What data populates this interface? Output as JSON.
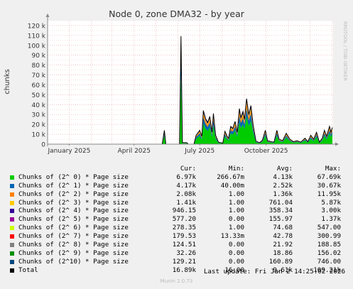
{
  "chart_data": {
    "type": "area",
    "title": "Node 0, zone DMA32 - by year",
    "ylabel": "chunks",
    "ylim": [
      0,
      125000
    ],
    "yticks": [
      {
        "value": 0,
        "label": "0"
      },
      {
        "value": 10000,
        "label": "10 k"
      },
      {
        "value": 20000,
        "label": "20 k"
      },
      {
        "value": 30000,
        "label": "30 k"
      },
      {
        "value": 40000,
        "label": "40 k"
      },
      {
        "value": 50000,
        "label": "50 k"
      },
      {
        "value": 60000,
        "label": "60 k"
      },
      {
        "value": 70000,
        "label": "70 k"
      },
      {
        "value": 80000,
        "label": "80 k"
      },
      {
        "value": 90000,
        "label": "90 k"
      },
      {
        "value": 100000,
        "label": "100 k"
      },
      {
        "value": 110000,
        "label": "110 k"
      },
      {
        "value": 120000,
        "label": "120 k"
      }
    ],
    "xlim": [
      "2024-12-02",
      "2026-01-02"
    ],
    "xticks": [
      {
        "date": "2025-01-01",
        "label": "January 2025"
      },
      {
        "date": "2025-04-01",
        "label": "April 2025"
      },
      {
        "date": "2025-07-01",
        "label": "July 2025"
      },
      {
        "date": "2025-10-01",
        "label": "October 2025"
      }
    ],
    "grid": true,
    "legend_placement": "bottom",
    "watermark": "RRDTOOL / TOBI OETIKER",
    "series": [
      {
        "name": "Chunks of (2^ 0) * Page size",
        "color": "#00cc00",
        "cur": "6.97k",
        "min": "266.67m",
        "avg": "4.13k",
        "max": "67.69k"
      },
      {
        "name": "Chunks of (2^ 1) * Page size",
        "color": "#0066b3",
        "cur": "4.17k",
        "min": "40.00m",
        "avg": "2.52k",
        "max": "30.67k"
      },
      {
        "name": "Chunks of (2^ 2) * Page size",
        "color": "#ff8000",
        "cur": "2.08k",
        "min": "1.00",
        "avg": "1.36k",
        "max": "11.95k"
      },
      {
        "name": "Chunks of (2^ 3) * Page size",
        "color": "#ffcc00",
        "cur": "1.41k",
        "min": "1.00",
        "avg": "761.04",
        "max": "5.87k"
      },
      {
        "name": "Chunks of (2^ 4) * Page size",
        "color": "#330099",
        "cur": "946.15",
        "min": "1.00",
        "avg": "358.34",
        "max": "3.00k"
      },
      {
        "name": "Chunks of (2^ 5) * Page size",
        "color": "#990099",
        "cur": "577.20",
        "min": "0.00",
        "avg": "155.97",
        "max": "1.37k"
      },
      {
        "name": "Chunks of (2^ 6) * Page size",
        "color": "#ccff00",
        "cur": "278.35",
        "min": "1.00",
        "avg": "74.68",
        "max": "547.00"
      },
      {
        "name": "Chunks of (2^ 7) * Page size",
        "color": "#ff0000",
        "cur": "179.53",
        "min": "13.33m",
        "avg": "42.78",
        "max": "300.99"
      },
      {
        "name": "Chunks of (2^ 8) * Page size",
        "color": "#808080",
        "cur": "124.51",
        "min": "0.00",
        "avg": "21.92",
        "max": "188.85"
      },
      {
        "name": "Chunks of (2^ 9) * Page size",
        "color": "#008f00",
        "cur": "32.26",
        "min": "0.00",
        "avg": "18.86",
        "max": "156.02"
      },
      {
        "name": "Chunks of (2^10) * Page size",
        "color": "#00487d",
        "cur": "129.21",
        "min": "0.00",
        "avg": "160.89",
        "max": "746.00"
      },
      {
        "name": "Total",
        "color": "#000000",
        "cur": "16.89k",
        "min": "16.00",
        "avg": "9.61k",
        "max": "109.21k"
      }
    ],
    "total_points": [
      [
        "2025-05-10",
        0
      ],
      [
        "2025-05-13",
        14000
      ],
      [
        "2025-05-15",
        0
      ],
      [
        "2025-06-03",
        0
      ],
      [
        "2025-06-05",
        109210
      ],
      [
        "2025-06-07",
        1500
      ],
      [
        "2025-06-13",
        1500
      ],
      [
        "2025-06-15",
        0
      ],
      [
        "2025-06-23",
        0
      ],
      [
        "2025-06-26",
        9000
      ],
      [
        "2025-07-01",
        14000
      ],
      [
        "2025-07-04",
        8000
      ],
      [
        "2025-07-06",
        34000
      ],
      [
        "2025-07-09",
        26000
      ],
      [
        "2025-07-12",
        22000
      ],
      [
        "2025-07-15",
        28000
      ],
      [
        "2025-07-18",
        12000
      ],
      [
        "2025-07-20",
        31000
      ],
      [
        "2025-07-23",
        9000
      ],
      [
        "2025-07-27",
        2000
      ],
      [
        "2025-08-02",
        1000
      ],
      [
        "2025-08-05",
        13000
      ],
      [
        "2025-08-08",
        8000
      ],
      [
        "2025-08-10",
        6000
      ],
      [
        "2025-08-13",
        18000
      ],
      [
        "2025-08-16",
        16000
      ],
      [
        "2025-08-19",
        23000
      ],
      [
        "2025-08-22",
        12000
      ],
      [
        "2025-08-25",
        36000
      ],
      [
        "2025-08-27",
        27000
      ],
      [
        "2025-08-30",
        33000
      ],
      [
        "2025-09-01",
        25000
      ],
      [
        "2025-09-04",
        46000
      ],
      [
        "2025-09-07",
        30000
      ],
      [
        "2025-09-10",
        39000
      ],
      [
        "2025-09-13",
        20000
      ],
      [
        "2025-09-17",
        3000
      ],
      [
        "2025-09-22",
        1500
      ],
      [
        "2025-09-26",
        4000
      ],
      [
        "2025-09-30",
        14000
      ],
      [
        "2025-10-03",
        3500
      ],
      [
        "2025-10-08",
        2500
      ],
      [
        "2025-10-12",
        2000
      ],
      [
        "2025-10-16",
        14000
      ],
      [
        "2025-10-19",
        5000
      ],
      [
        "2025-10-24",
        3500
      ],
      [
        "2025-10-29",
        11000
      ],
      [
        "2025-11-03",
        5000
      ],
      [
        "2025-11-08",
        2500
      ],
      [
        "2025-11-13",
        3500
      ],
      [
        "2025-11-18",
        2000
      ],
      [
        "2025-11-24",
        6000
      ],
      [
        "2025-11-28",
        2500
      ],
      [
        "2025-12-02",
        9000
      ],
      [
        "2025-12-06",
        5000
      ],
      [
        "2025-12-10",
        12000
      ],
      [
        "2025-12-14",
        2000
      ],
      [
        "2025-12-18",
        6000
      ],
      [
        "2025-12-21",
        14000
      ],
      [
        "2025-12-24",
        8000
      ],
      [
        "2025-12-28",
        18000
      ],
      [
        "2025-12-30",
        12000
      ],
      [
        "2026-01-01",
        16890
      ]
    ],
    "stack_fractions": [
      0.61,
      0.18,
      0.09,
      0.05,
      0.03,
      0.015,
      0.01,
      0.008,
      0.004,
      0.001,
      0.002
    ]
  },
  "legend_header": {
    "cur": "Cur:",
    "min": "Min:",
    "avg": "Avg:",
    "max": "Max:"
  },
  "last_update": "Last update:  Fri Jan  2 14:25:02 2026",
  "footer": "Munin 2.0.73"
}
